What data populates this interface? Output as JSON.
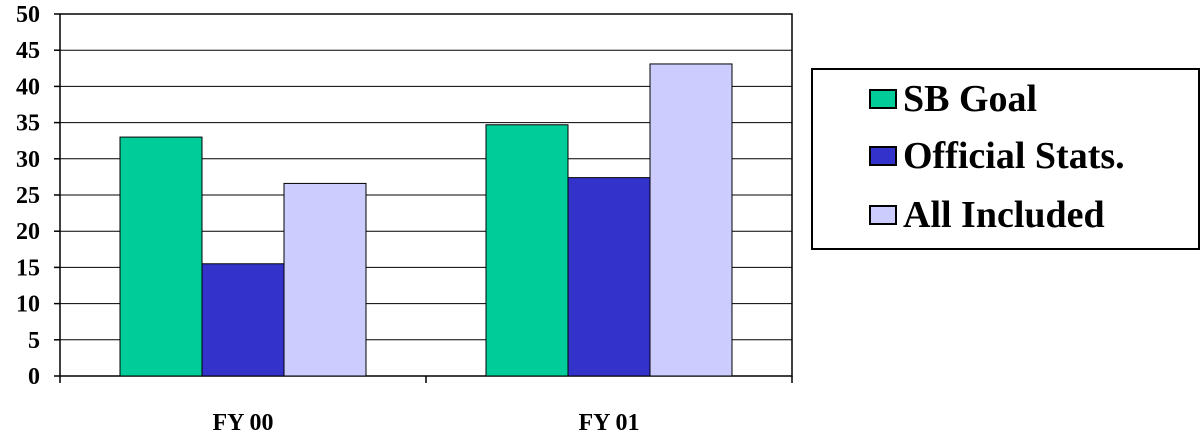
{
  "chart_data": {
    "type": "bar",
    "categories": [
      "FY 00",
      "FY 01"
    ],
    "series": [
      {
        "name": "SB Goal",
        "values": [
          33,
          34.7
        ],
        "color": "#00cc99"
      },
      {
        "name": "Official Stats.",
        "values": [
          15.5,
          27.4
        ],
        "color": "#3333cc"
      },
      {
        "name": "All Included",
        "values": [
          26.6,
          43.1
        ],
        "color": "#ccccff"
      }
    ],
    "title": "",
    "xlabel": "",
    "ylabel": "",
    "ylim": [
      0,
      50
    ],
    "yticks": [
      "0",
      "5",
      "10",
      "15",
      "20",
      "25",
      "30",
      "35",
      "40",
      "45",
      "50"
    ],
    "grid": true,
    "legend_position": "right"
  }
}
